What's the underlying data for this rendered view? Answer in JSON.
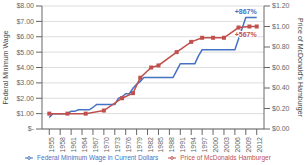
{
  "chart_data": {
    "type": "line",
    "ylabel": "Federal Minimum Wage",
    "y2label": "Price of McDonald's Hamburger",
    "xlim": [
      1953,
      2014
    ],
    "xticks": [
      1955,
      1958,
      1961,
      1964,
      1967,
      1970,
      1973,
      1976,
      1979,
      1982,
      1985,
      1988,
      1991,
      1994,
      1997,
      2000,
      2003,
      2006,
      2009,
      2012
    ],
    "ylim": [
      0,
      8.0
    ],
    "yticks": [
      {
        "value": 0,
        "label": "$-"
      },
      {
        "value": 1.0,
        "label": "$1.00"
      },
      {
        "value": 2.0,
        "label": "$2.00"
      },
      {
        "value": 3.0,
        "label": "$3.00"
      },
      {
        "value": 4.0,
        "label": "$4.00"
      },
      {
        "value": 5.0,
        "label": "$5.00"
      },
      {
        "value": 6.0,
        "label": "$6.00"
      },
      {
        "value": 7.0,
        "label": "$7.00"
      },
      {
        "value": 8.0,
        "label": "$8.00"
      }
    ],
    "y2lim": [
      0,
      1.2
    ],
    "y2ticks": [
      {
        "value": 0,
        "label": "$0.00"
      },
      {
        "value": 0.2,
        "label": "$0.20"
      },
      {
        "value": 0.4,
        "label": "$0.40"
      },
      {
        "value": 0.6,
        "label": "$0.60"
      },
      {
        "value": 0.8,
        "label": "$0.80"
      },
      {
        "value": 1.0,
        "label": "$1.00"
      },
      {
        "value": 1.2,
        "label": "$1.20"
      }
    ],
    "grid": true,
    "legend": "bottom",
    "series": [
      {
        "name": "Federal Minimum Wage in Current Dollars",
        "color": "#4472C4",
        "axis": "y",
        "marker": "none",
        "annotation": "+867%",
        "x": [
          1955,
          1956,
          1957,
          1958,
          1959,
          1960,
          1961,
          1962,
          1963,
          1964,
          1965,
          1966,
          1967,
          1968,
          1969,
          1970,
          1971,
          1972,
          1973,
          1974,
          1975,
          1976,
          1977,
          1978,
          1979,
          1980,
          1981,
          1982,
          1983,
          1984,
          1985,
          1986,
          1987,
          1988,
          1989,
          1990,
          1991,
          1992,
          1993,
          1994,
          1995,
          1996,
          1997,
          1998,
          1999,
          2000,
          2001,
          2002,
          2003,
          2004,
          2005,
          2006,
          2007,
          2008,
          2009,
          2010,
          2011,
          2012
        ],
        "values": [
          0.75,
          1.0,
          1.0,
          1.0,
          1.0,
          1.0,
          1.15,
          1.15,
          1.25,
          1.25,
          1.25,
          1.25,
          1.4,
          1.6,
          1.6,
          1.6,
          1.6,
          1.6,
          1.6,
          2.0,
          2.1,
          2.3,
          2.3,
          2.65,
          2.9,
          3.1,
          3.35,
          3.35,
          3.35,
          3.35,
          3.35,
          3.35,
          3.35,
          3.35,
          3.35,
          3.8,
          4.25,
          4.25,
          4.25,
          4.25,
          4.25,
          4.75,
          5.15,
          5.15,
          5.15,
          5.15,
          5.15,
          5.15,
          5.15,
          5.15,
          5.15,
          5.15,
          5.85,
          6.55,
          7.25,
          7.25,
          7.25,
          7.25
        ]
      },
      {
        "name": "Price of McDonalds Hamburger",
        "color": "#C0504D",
        "axis": "y2",
        "marker": "square",
        "annotation": "+567%",
        "x": [
          1955,
          1960,
          1965,
          1970,
          1975,
          1978,
          1980,
          1983,
          1985,
          1990,
          1994,
          1997,
          2000,
          2003,
          2007,
          2010,
          2012
        ],
        "values": [
          0.15,
          0.15,
          0.15,
          0.18,
          0.3,
          0.35,
          0.5,
          0.6,
          0.62,
          0.75,
          0.85,
          0.89,
          0.89,
          0.89,
          0.99,
          1.0,
          1.0
        ]
      }
    ]
  }
}
